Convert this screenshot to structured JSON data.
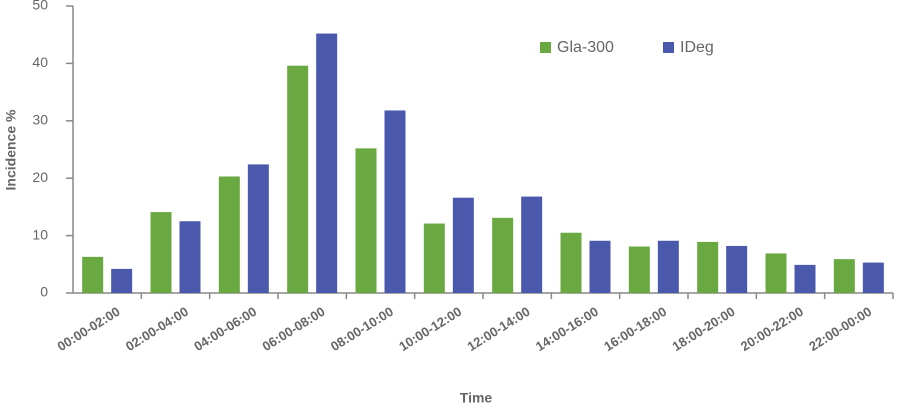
{
  "chart_data": {
    "type": "bar",
    "x_label": "Time",
    "y_label": "Incidence %",
    "categories": [
      "00:00-02:00",
      "02:00-04:00",
      "04:00-06:00",
      "06:00-08:00",
      "08:00-10:00",
      "10:00-12:00",
      "12:00-14:00",
      "14:00-16:00",
      "16:00-18:00",
      "18:00-20:00",
      "20:00-22:00",
      "22:00-00:00"
    ],
    "series": [
      {
        "name": "Gla-300",
        "color": "#6aa842",
        "values": [
          6.3,
          14.1,
          20.3,
          39.6,
          25.2,
          12.1,
          13.1,
          10.5,
          8.1,
          8.9,
          6.9,
          5.9
        ]
      },
      {
        "name": "IDeg",
        "color": "#4b59ad",
        "values": [
          4.2,
          12.5,
          22.4,
          45.2,
          31.8,
          16.6,
          16.8,
          9.1,
          9.1,
          8.2,
          4.9,
          5.3
        ]
      }
    ],
    "ylim": [
      0,
      50
    ],
    "yticks": [
      0,
      10,
      20,
      30,
      40,
      50
    ],
    "grid": false,
    "legend": "top-right"
  }
}
